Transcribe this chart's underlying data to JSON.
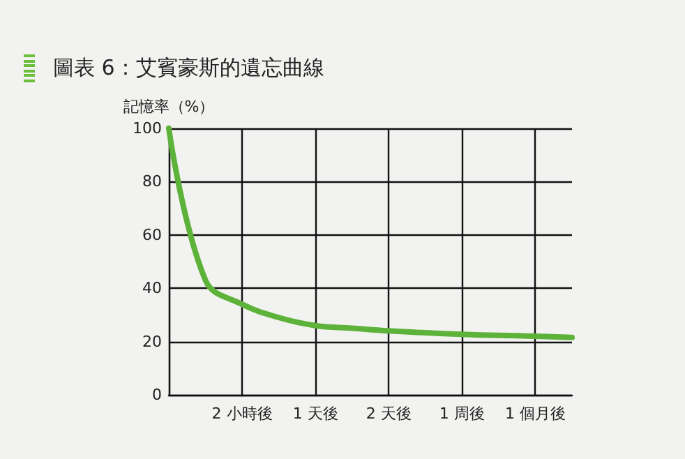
{
  "chart_data": {
    "type": "line",
    "title": "圖表 6：艾賓豪斯的遺忘曲線",
    "ylabel": "記憶率（%）",
    "categories": [
      null,
      null,
      "2 小時後",
      null,
      "1 天後",
      null,
      "2 天後",
      null,
      "1 周後",
      null,
      "1 個月後",
      null
    ],
    "series": [
      {
        "color": "#5db33a",
        "values": [
          100,
          43,
          34,
          29,
          26,
          25,
          24,
          23.3,
          22.7,
          22.3,
          22,
          21.5
        ]
      }
    ],
    "ylim": [
      0,
      100
    ],
    "yticks": [
      0,
      20,
      40,
      60,
      80,
      100
    ],
    "grid": true,
    "marker": "none",
    "line_style": "solid"
  }
}
